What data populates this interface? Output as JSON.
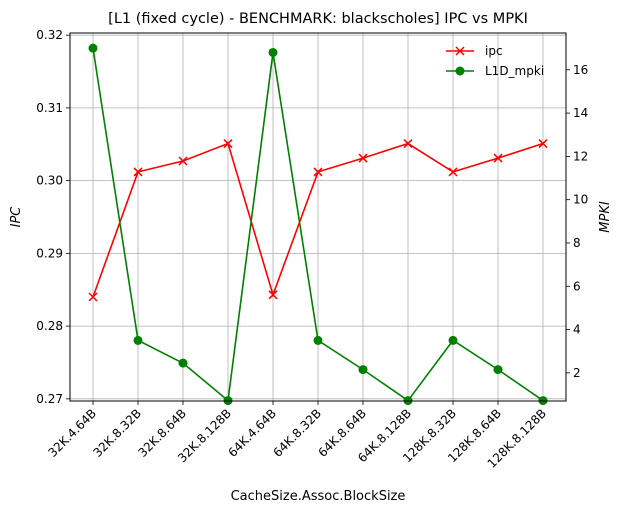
{
  "chart_data": {
    "type": "line",
    "title": "[L1 (fixed cycle) - BENCHMARK: blackscholes]  IPC vs MPKI",
    "xlabel": "CacheSize.Assoc.BlockSize",
    "ylabel_left": "IPC",
    "ylabel_right": "MPKI",
    "categories": [
      "32K.4.64B",
      "32K.8.32B",
      "32K.8.64B",
      "32K.8.128B",
      "64K.4.64B",
      "64K.8.32B",
      "64K.8.64B",
      "64K.8.128B",
      "128K.8.32B",
      "128K.8.64B",
      "128K.8.128B"
    ],
    "ylim_left": [
      0.2697,
      0.3203
    ],
    "yticks_left": [
      "0.27",
      "0.28",
      "0.29",
      "0.30",
      "0.31",
      "0.32"
    ],
    "ylim_right": [
      0.7,
      17.7
    ],
    "yticks_right": [
      "2",
      "4",
      "6",
      "8",
      "10",
      "12",
      "14",
      "16"
    ],
    "grid": true,
    "legend_position": "top-right",
    "series": [
      {
        "name": "ipc",
        "axis": "left",
        "color": "#ff0000",
        "marker": "x",
        "values": [
          0.284,
          0.3012,
          0.3027,
          0.3051,
          0.2843,
          0.3012,
          0.3031,
          0.3051,
          0.3012,
          0.3031,
          0.3051
        ]
      },
      {
        "name": "L1D_mpki",
        "axis": "right",
        "color": "#008000",
        "marker": "o",
        "values": [
          17.0,
          3.5,
          2.45,
          0.72,
          16.8,
          3.5,
          2.15,
          0.72,
          3.5,
          2.15,
          0.72
        ]
      }
    ]
  }
}
